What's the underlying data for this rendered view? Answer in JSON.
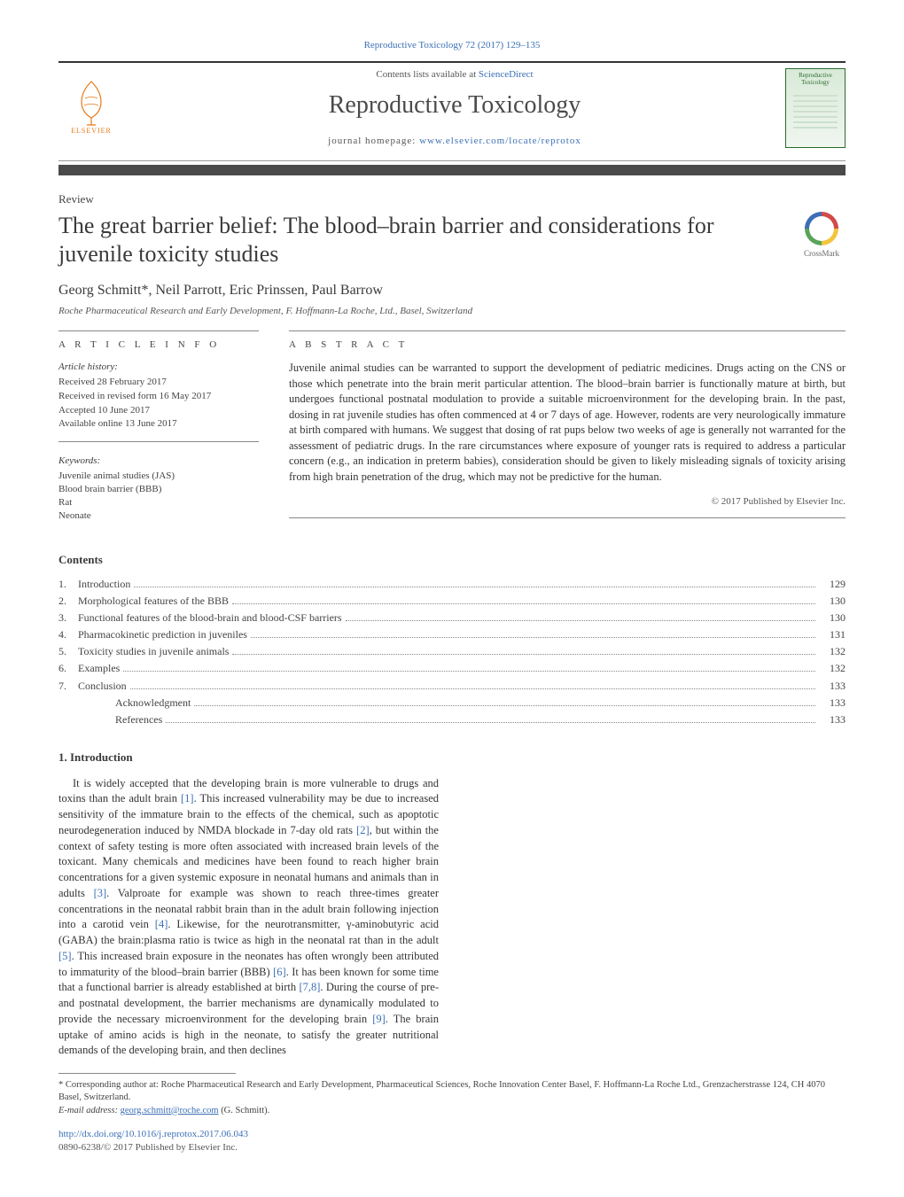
{
  "runningHead": "Reproductive Toxicology 72 (2017) 129–135",
  "header": {
    "contentsLine": "Contents lists available at ",
    "contentsLinkText": "ScienceDirect",
    "journalTitle": "Reproductive Toxicology",
    "homepageLabel": "journal homepage: ",
    "homepageUrl": "www.elsevier.com/locate/reprotox",
    "publisherName": "ELSEVIER",
    "coverTitle": "Reproductive Toxicology"
  },
  "articleType": "Review",
  "title": "The great barrier belief: The blood–brain barrier and considerations for juvenile toxicity studies",
  "crossmarkLabel": "CrossMark",
  "authors": "Georg Schmitt*, Neil Parrott, Eric Prinssen, Paul Barrow",
  "affiliation": "Roche Pharmaceutical Research and Early Development, F. Hoffmann-La Roche, Ltd., Basel, Switzerland",
  "info": {
    "headLabel": "a r t i c l e   i n f o",
    "historyHead": "Article history:",
    "received": "Received 28 February 2017",
    "revised": "Received in revised form 16 May 2017",
    "accepted": "Accepted 10 June 2017",
    "online": "Available online 13 June 2017",
    "keywordsHead": "Keywords:",
    "keywords": [
      "Juvenile animal studies (JAS)",
      "Blood brain barrier (BBB)",
      "Rat",
      "Neonate"
    ]
  },
  "abstract": {
    "headLabel": "a b s t r a c t",
    "text": "Juvenile animal studies can be warranted to support the development of pediatric medicines. Drugs acting on the CNS or those which penetrate into the brain merit particular attention. The blood–brain barrier is functionally mature at birth, but undergoes functional postnatal modulation to provide a suitable microenvironment for the developing brain. In the past, dosing in rat juvenile studies has often commenced at 4 or 7 days of age. However, rodents are very neurologically immature at birth compared with humans. We suggest that dosing of rat pups below two weeks of age is generally not warranted for the assessment of pediatric drugs. In the rare circumstances where exposure of younger rats is required to address a particular concern (e.g., an indication in preterm babies), consideration should be given to likely misleading signals of toxicity arising from high brain penetration of the drug, which may not be predictive for the human.",
    "copyright": "© 2017 Published by Elsevier Inc."
  },
  "contents": {
    "head": "Contents",
    "items": [
      {
        "num": "1.",
        "title": "Introduction",
        "page": "129",
        "indent": 0
      },
      {
        "num": "2.",
        "title": "Morphological features of the BBB",
        "page": "130",
        "indent": 0
      },
      {
        "num": "3.",
        "title": "Functional features of the blood-brain and blood-CSF barriers",
        "page": "130",
        "indent": 0
      },
      {
        "num": "4.",
        "title": "Pharmacokinetic prediction in juveniles",
        "page": "131",
        "indent": 0
      },
      {
        "num": "5.",
        "title": "Toxicity studies in juvenile animals",
        "page": "132",
        "indent": 0
      },
      {
        "num": "6.",
        "title": "Examples",
        "page": "132",
        "indent": 0
      },
      {
        "num": "7.",
        "title": "Conclusion",
        "page": "133",
        "indent": 0
      },
      {
        "num": "",
        "title": "Acknowledgment",
        "page": "133",
        "indent": 1
      },
      {
        "num": "",
        "title": "References",
        "page": "133",
        "indent": 1
      }
    ]
  },
  "section1": {
    "head": "1. Introduction",
    "para1_a": "It is widely accepted that the developing brain is more vulnerable to drugs and toxins than the adult brain ",
    "ref1": "[1]",
    "para1_b": ". This increased vulnerability may be due to increased sensitivity of the immature brain to the effects of the chemical, such as apoptotic neurodegeneration induced by NMDA blockade in 7-day old rats ",
    "ref2": "[2]",
    "para1_c": ", but within the context of safety testing is more often associated with increased brain levels of the toxicant. Many chemicals and medicines have been found to reach higher brain concentrations for a given sys",
    "para2_a": "temic exposure in neonatal humans and animals than in adults ",
    "ref3": "[3]",
    "para2_b": ". Valproate for example was shown to reach three-times greater concentrations in the neonatal rabbit brain than in the adult brain following injection into a carotid vein ",
    "ref4": "[4]",
    "para2_c": ". Likewise, for the neurotransmitter, γ-aminobutyric acid (GABA) the brain:plasma ratio is twice as high in the neonatal rat than in the adult ",
    "ref5": "[5]",
    "para2_d": ". This increased brain exposure in the neonates has often wrongly been attributed to immaturity of the blood–brain barrier (BBB) ",
    "ref6": "[6]",
    "para2_e": ". It has been known for some time that a functional barrier is already established at birth ",
    "ref78": "[7,8]",
    "para2_f": ". During the course of pre- and postnatal development, the barrier mechanisms are dynamically modulated to provide the necessary microenvironment for the developing brain ",
    "ref9": "[9]",
    "para2_g": ". The brain uptake of amino acids is high in the neonate, to satisfy the greater nutritional demands of the developing brain, and then declines"
  },
  "footnote": {
    "corrLabel": "* Corresponding author at: ",
    "corrText": "Roche Pharmaceutical Research and Early Development, Pharmaceutical Sciences, Roche Innovation Center Basel, F. Hoffmann-La Roche Ltd., Grenzacherstrasse 124, CH 4070 Basel, Switzerland.",
    "emailLabel": "E-mail address: ",
    "email": "georg.schmitt@roche.com",
    "emailSuffix": " (G. Schmitt)."
  },
  "doi": "http://dx.doi.org/10.1016/j.reprotox.2017.06.043",
  "issn": "0890-6238/© 2017 Published by Elsevier Inc.",
  "colors": {
    "link": "#3b6fb5",
    "orange": "#e67817",
    "ruleDark": "#4a4a4a",
    "text": "#3a3a3a"
  }
}
